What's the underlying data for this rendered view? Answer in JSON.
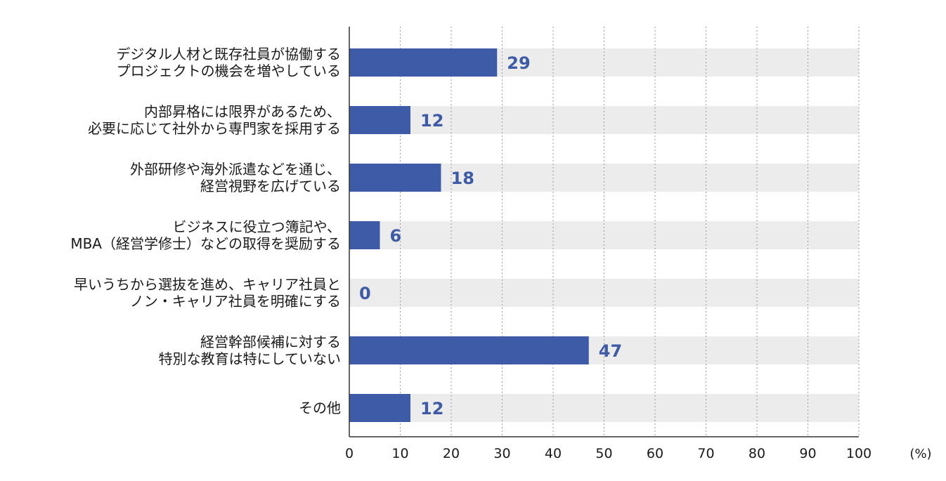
{
  "chart_data": {
    "type": "bar",
    "orientation": "horizontal",
    "categories": [
      [
        "デジタル人材と既存社員が協働する",
        "プロジェクトの機会を増やしている"
      ],
      [
        "内部昇格には限界があるため、",
        "必要に応じて社外から専門家を採用する"
      ],
      [
        "外部研修や海外派遣などを通じ、",
        "経営視野を広げている"
      ],
      [
        "ビジネスに役立つ簿記や、",
        "MBA（経営学修士）などの取得を奨励する"
      ],
      [
        "早いうちから選抜を進め、キャリア社員と",
        "ノン・キャリア社員を明確にする"
      ],
      [
        "経営幹部候補に対する",
        "特別な教育は特にしていない"
      ],
      [
        "その他"
      ]
    ],
    "values": [
      29,
      12,
      18,
      6,
      0,
      47,
      12
    ],
    "xlim": [
      0,
      100
    ],
    "xticks": [
      0,
      10,
      20,
      30,
      40,
      50,
      60,
      70,
      80,
      90,
      100
    ],
    "unit": "(%)",
    "grid": "vertical-dotted",
    "colors": {
      "bar": "#3d5ba6",
      "track": "#ececec",
      "label": "#3d5ba6",
      "grid": "#9a9a9a",
      "axis": "#333333"
    }
  }
}
